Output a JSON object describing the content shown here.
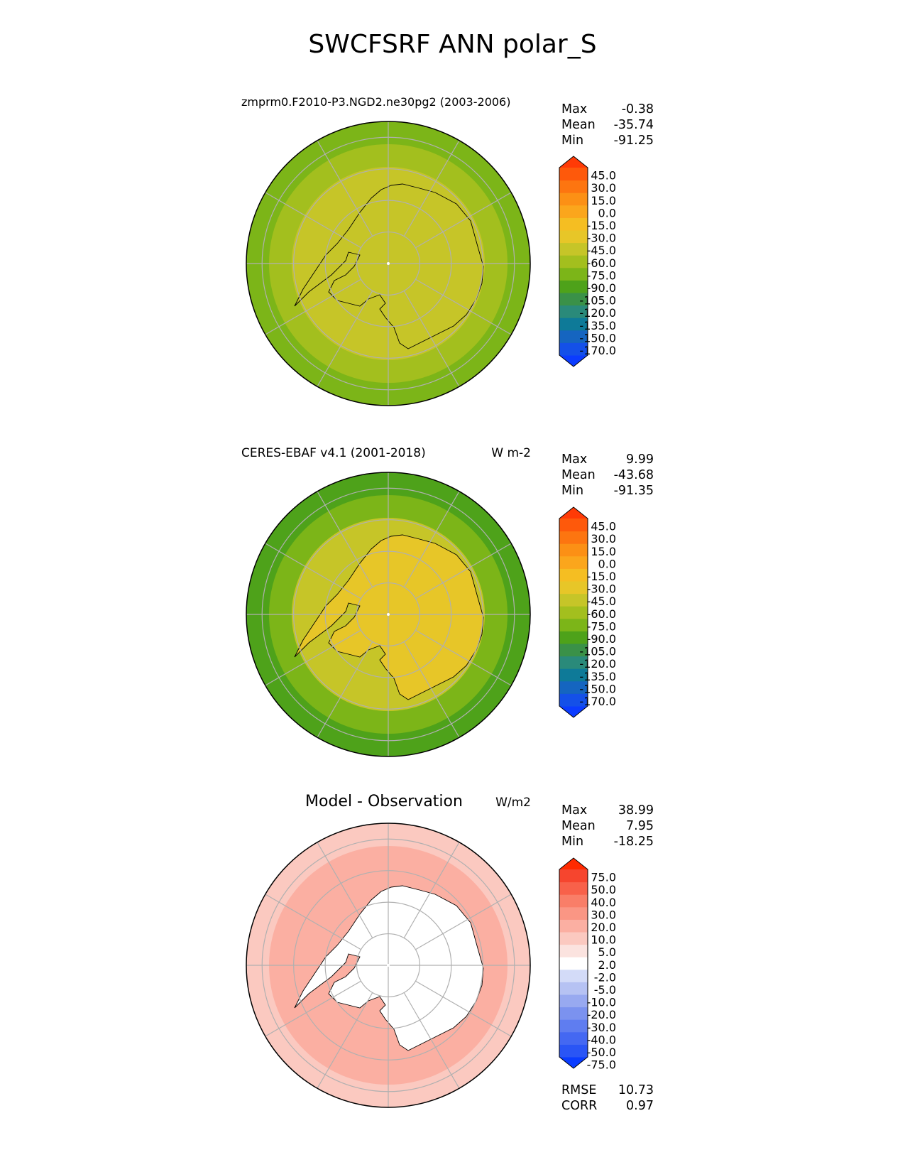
{
  "figure_title": "SWCFSRF ANN polar_S",
  "panels": [
    {
      "title": "zmprm0.F2010-P3.NGD2.ne30pg2 (2003-2006)",
      "units": "",
      "stats": {
        "max_label": "Max",
        "max": "-0.38",
        "mean_label": "Mean",
        "mean": "-35.74",
        "min_label": "Min",
        "min": "-91.25"
      }
    },
    {
      "title": "CERES-EBAF v4.1 (2001-2018)",
      "units": "W m-2",
      "stats": {
        "max_label": "Max",
        "max": "9.99",
        "mean_label": "Mean",
        "mean": "-43.68",
        "min_label": "Min",
        "min": "-91.35"
      }
    },
    {
      "title": "Model - Observation",
      "units": "W/m2",
      "stats": {
        "max_label": "Max",
        "max": "38.99",
        "mean_label": "Mean",
        "mean": "7.95",
        "min_label": "Min",
        "min": "-18.25"
      }
    }
  ],
  "footer": {
    "rmse_label": "RMSE",
    "rmse": "10.73",
    "corr_label": "CORR",
    "corr": "0.97"
  },
  "chart_data": [
    {
      "type": "heatmap",
      "projection": "south-polar-stereographic",
      "title": "zmprm0.F2010-P3.NGD2.ne30pg2 (2003-2006)",
      "stats": {
        "max": -0.38,
        "mean": -35.74,
        "min": -91.25
      },
      "colorbar": {
        "extend": "both",
        "levels": [
          -170,
          -150,
          -135,
          -120,
          -105,
          -90,
          -75,
          -60,
          -45,
          -30,
          -15,
          0,
          15,
          30,
          45
        ],
        "tick_labels": [
          "45.0",
          "30.0",
          "15.0",
          "0.0",
          "-15.0",
          "-30.0",
          "-45.0",
          "-60.0",
          "-75.0",
          "-90.0",
          "-105.0",
          "-120.0",
          "-135.0",
          "-150.0",
          "-170.0"
        ],
        "colors_bottom_to_top": [
          "#0b3cff",
          "#1450e8",
          "#1565c0",
          "#0e7a98",
          "#2a8a7a",
          "#3a9148",
          "#4ea21a",
          "#7cb518",
          "#a3bf1e",
          "#c6c528",
          "#e7c628",
          "#f5be22",
          "#fba61c",
          "#fc9015",
          "#fd7510",
          "#fe590b",
          "#ff3a06"
        ]
      },
      "rings_lat": [
        -80,
        -70,
        -60,
        -50
      ],
      "meridians": 12,
      "regions": {
        "antarctica": -32,
        "near_coast": -42,
        "mid_ring": -55,
        "outer_ring": -75
      }
    },
    {
      "type": "heatmap",
      "projection": "south-polar-stereographic",
      "title": "CERES-EBAF v4.1 (2001-2018)",
      "units": "W m-2",
      "stats": {
        "max": 9.99,
        "mean": -43.68,
        "min": -91.35
      },
      "colorbar": {
        "extend": "both",
        "levels": [
          -170,
          -150,
          -135,
          -120,
          -105,
          -90,
          -75,
          -60,
          -45,
          -30,
          -15,
          0,
          15,
          30,
          45
        ],
        "tick_labels": [
          "45.0",
          "30.0",
          "15.0",
          "0.0",
          "-15.0",
          "-30.0",
          "-45.0",
          "-60.0",
          "-75.0",
          "-90.0",
          "-105.0",
          "-120.0",
          "-135.0",
          "-150.0",
          "-170.0"
        ],
        "colors_bottom_to_top": [
          "#0b3cff",
          "#1450e8",
          "#1565c0",
          "#0e7a98",
          "#2a8a7a",
          "#3a9148",
          "#4ea21a",
          "#7cb518",
          "#a3bf1e",
          "#c6c528",
          "#e7c628",
          "#f5be22",
          "#fba61c",
          "#fc9015",
          "#fd7510",
          "#fe590b",
          "#ff3a06"
        ]
      },
      "rings_lat": [
        -80,
        -70,
        -60,
        -50
      ],
      "meridians": 12,
      "regions": {
        "antarctica": -25,
        "near_coast": -40,
        "mid_ring": -62,
        "outer_ring": -82
      }
    },
    {
      "type": "heatmap",
      "projection": "south-polar-stereographic",
      "title": "Model - Observation",
      "units": "W/m2",
      "stats": {
        "max": 38.99,
        "mean": 7.95,
        "min": -18.25,
        "rmse": 10.73,
        "corr": 0.97
      },
      "colorbar": {
        "extend": "both",
        "levels": [
          -75,
          -50,
          -40,
          -30,
          -20,
          -10,
          -5,
          -2,
          2,
          5,
          10,
          20,
          30,
          40,
          50,
          75
        ],
        "tick_labels": [
          "75.0",
          "50.0",
          "40.0",
          "30.0",
          "20.0",
          "10.0",
          "5.0",
          "2.0",
          "-2.0",
          "-5.0",
          "-10.0",
          "-20.0",
          "-30.0",
          "-40.0",
          "-50.0",
          "-75.0"
        ],
        "colors_bottom_to_top": [
          "#0a3cff",
          "#2a55f5",
          "#4468f2",
          "#5f7df0",
          "#7b92ef",
          "#98a9f0",
          "#b6c2f3",
          "#d3dbf8",
          "#ffffff",
          "#fbe3df",
          "#fbc9c0",
          "#fbafa2",
          "#fa9684",
          "#f97e68",
          "#f8614a",
          "#f6452e",
          "#ff2a00"
        ]
      },
      "rings_lat": [
        -80,
        -70,
        -60,
        -50
      ],
      "meridians": 12,
      "regions": {
        "antarctica": 1,
        "near_coast": 12,
        "mid_ring": 18,
        "outer_ring": 8
      }
    }
  ]
}
